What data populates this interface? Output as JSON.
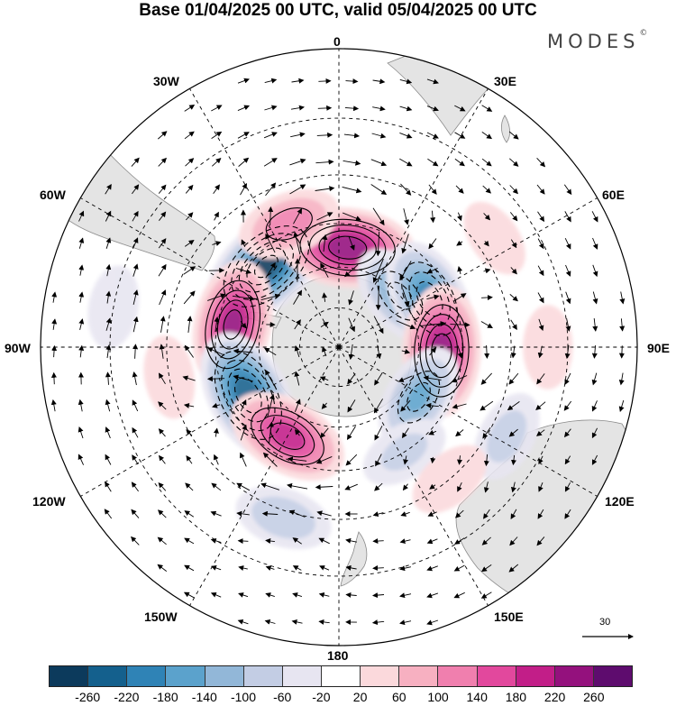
{
  "title": "Base 01/04/2025 00 UTC, valid 05/04/2025 00 UTC",
  "brand": {
    "name": "MODES",
    "mark": "©"
  },
  "longitude_labels": {
    "lon_0": "0",
    "lon_30e": "30E",
    "lon_60e": "60E",
    "lon_90e": "90E",
    "lon_120e": "120E",
    "lon_150e": "150E",
    "lon_180": "180",
    "lon_150w": "150W",
    "lon_120w": "120W",
    "lon_90w": "90W",
    "lon_60w": "60W",
    "lon_30w": "30W"
  },
  "projection": "south-polar-stereographic",
  "reference_vector": {
    "value": "30"
  },
  "colorbar": {
    "colors": [
      "#0c3a5c",
      "#14608d",
      "#2f83b6",
      "#5ba2cc",
      "#92b7d8",
      "#c3cde4",
      "#e7e5f1",
      "#ffffff",
      "#fbd9dc",
      "#f7b0c1",
      "#f07fae",
      "#e2489d",
      "#c21e88",
      "#94117d",
      "#5e0c6e"
    ],
    "ticks": [
      "-260",
      "-220",
      "-180",
      "-140",
      "-100",
      "-60",
      "-20",
      "20",
      "60",
      "100",
      "140",
      "180",
      "220",
      "260"
    ]
  },
  "anomaly_centers": [
    {
      "lon": -42,
      "lat": -50,
      "value": -270
    },
    {
      "lon": 5,
      "lat": -53,
      "value": 250
    },
    {
      "lon": 50,
      "lat": -60,
      "value": -140
    },
    {
      "lon": 62,
      "lat": -52,
      "value": -200
    },
    {
      "lon": 92,
      "lat": -52,
      "value": 240
    },
    {
      "lon": 122,
      "lat": -55,
      "value": -140
    },
    {
      "lon": -78,
      "lat": -50,
      "value": 230
    },
    {
      "lon": -118,
      "lat": -52,
      "value": -250
    },
    {
      "lon": -150,
      "lat": -52,
      "value": 200
    },
    {
      "lon": -22,
      "lat": -42,
      "value": 120
    },
    {
      "lon": -162,
      "lat": -28,
      "value": -90
    },
    {
      "lon": 148,
      "lat": -45,
      "value": -60
    },
    {
      "lon": 118,
      "lat": -25,
      "value": -70
    },
    {
      "lon": 140,
      "lat": -30,
      "value": 40
    },
    {
      "lon": 90,
      "lat": -20,
      "value": 30
    },
    {
      "lon": -100,
      "lat": -30,
      "value": 30
    },
    {
      "lon": -80,
      "lat": -15,
      "value": -30
    },
    {
      "lon": 55,
      "lat": -25,
      "value": 20
    }
  ]
}
